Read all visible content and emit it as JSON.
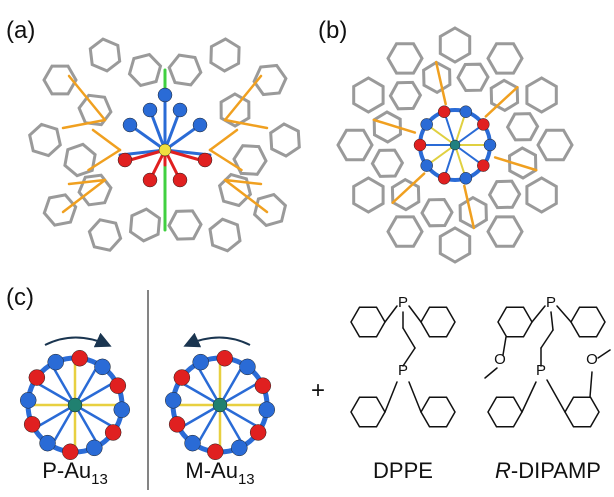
{
  "panels": {
    "a": {
      "label": "(a)"
    },
    "b": {
      "label": "(b)"
    },
    "c": {
      "label": "(c)",
      "plus": "+",
      "clusters": [
        {
          "name": "P-Au",
          "sub": "13"
        },
        {
          "name": "M-Au",
          "sub": "13"
        }
      ],
      "ligands": [
        {
          "name": "DPPE",
          "atoms": [
            "P",
            "P"
          ]
        },
        {
          "prefix": "R",
          "name": "-DIPAMP",
          "atoms": [
            "P",
            "P",
            "O",
            "O"
          ]
        }
      ]
    }
  }
}
